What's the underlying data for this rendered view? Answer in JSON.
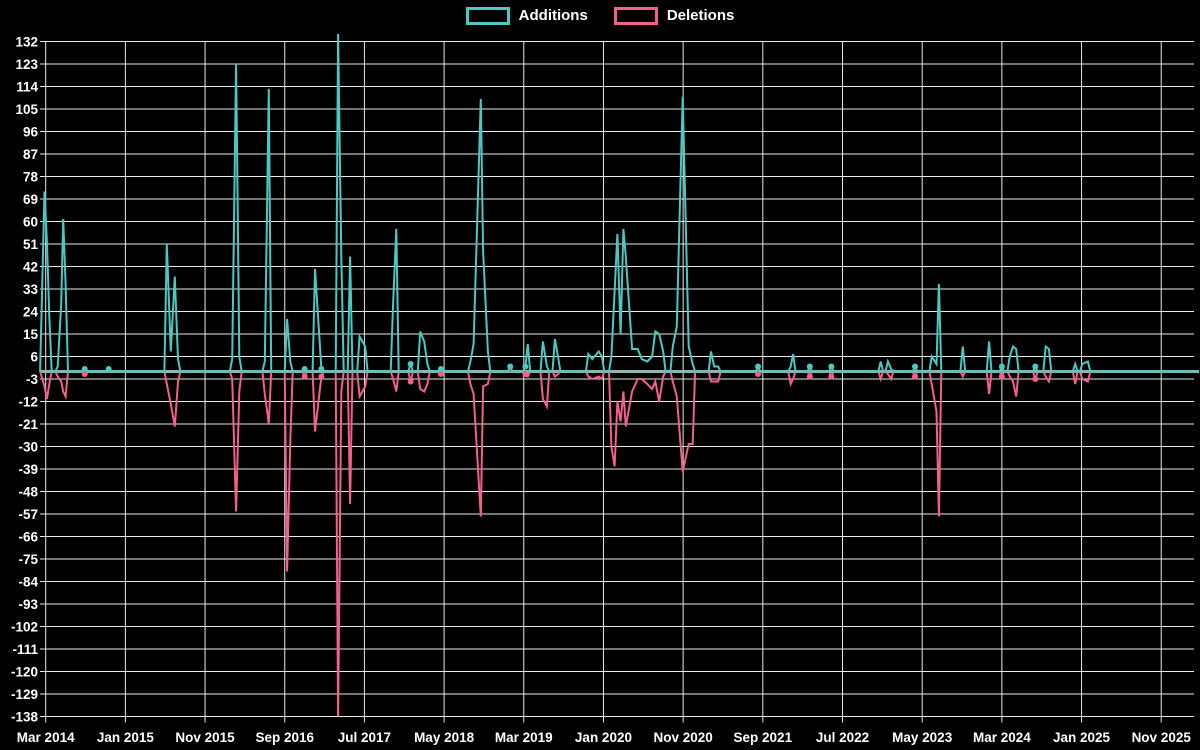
{
  "legend": {
    "additions": "Additions",
    "deletions": "Deletions"
  },
  "colors": {
    "background": "#000000",
    "additions": "#4CC8C2",
    "deletions": "#F2608C",
    "baseline": "#8FB5B3",
    "grid": "#E8E8E8",
    "text": "#FFFFFF"
  },
  "chart_data": {
    "type": "line",
    "title": "",
    "xlabel": "",
    "ylabel": "",
    "legend_position": "top",
    "grid": true,
    "series_names": [
      "Additions",
      "Deletions"
    ],
    "x_axis": {
      "tick_labels": [
        "Mar 2014",
        "Jan 2015",
        "Nov 2015",
        "Sep 2016",
        "Jul 2017",
        "May 2018",
        "Mar 2019",
        "Jan 2020",
        "Nov 2020",
        "Sep 2021",
        "Jul 2022",
        "May 2023",
        "Mar 2024",
        "Jan 2025",
        "Nov 2025"
      ],
      "months_per_tick": 10
    },
    "y_axis": {
      "min": -138,
      "max": 132,
      "step": 9
    },
    "points_format": [
      "months_since_Mar2014",
      "additions",
      "deletions",
      "marker_dot"
    ],
    "points": [
      [
        -0.7,
        0,
        0
      ],
      [
        -0.15,
        72,
        -6
      ],
      [
        0.15,
        52,
        -11
      ],
      [
        0.45,
        22,
        -5
      ],
      [
        1.5,
        2,
        -2
      ],
      [
        1.95,
        27,
        -4
      ],
      [
        2.2,
        61,
        -8
      ],
      [
        2.5,
        35,
        -10
      ],
      [
        4.9,
        1,
        -1,
        1
      ],
      [
        7.9,
        1,
        0,
        1
      ],
      [
        15.2,
        51,
        -5
      ],
      [
        15.7,
        8,
        -13
      ],
      [
        16.2,
        38,
        -22
      ],
      [
        16.6,
        5,
        -4
      ],
      [
        23.4,
        5,
        -3
      ],
      [
        23.9,
        123,
        -56
      ],
      [
        24.3,
        6,
        -8
      ],
      [
        27.5,
        4,
        -9
      ],
      [
        28.0,
        113,
        -21
      ],
      [
        30.3,
        21,
        -80
      ],
      [
        30.7,
        4,
        -28
      ],
      [
        32.5,
        1,
        -2,
        1
      ],
      [
        33.8,
        41,
        -24
      ],
      [
        34.6,
        1,
        -2,
        1
      ],
      [
        36.7,
        135,
        -138
      ],
      [
        37.1,
        46,
        -8
      ],
      [
        38.2,
        46,
        -53
      ],
      [
        39.4,
        14,
        -10
      ],
      [
        40.1,
        10,
        -6
      ],
      [
        43.6,
        27,
        -3
      ],
      [
        44.0,
        57,
        -8
      ],
      [
        45.8,
        3,
        -4,
        1
      ],
      [
        47.0,
        16,
        -7
      ],
      [
        47.5,
        12,
        -8
      ],
      [
        47.9,
        3,
        -5
      ],
      [
        49.6,
        1,
        -1,
        1
      ],
      [
        53.3,
        4,
        -5
      ],
      [
        53.7,
        11,
        -9
      ],
      [
        54.6,
        109,
        -58
      ],
      [
        54.9,
        48,
        -6
      ],
      [
        55.5,
        8,
        -5
      ],
      [
        58.3,
        2,
        0,
        1
      ],
      [
        60.2,
        2,
        -1,
        1
      ],
      [
        60.5,
        11,
        -2
      ],
      [
        62.4,
        12,
        -11
      ],
      [
        62.9,
        2,
        -14
      ],
      [
        63.9,
        13,
        -2
      ],
      [
        64.3,
        6,
        -1
      ],
      [
        68.1,
        7,
        -2
      ],
      [
        68.6,
        5,
        -3
      ],
      [
        69.4,
        8,
        -2
      ],
      [
        69.8,
        6,
        -3
      ],
      [
        71.0,
        6,
        -30
      ],
      [
        71.4,
        32,
        -38
      ],
      [
        71.75,
        55,
        -12
      ],
      [
        72.15,
        15,
        -20
      ],
      [
        72.5,
        57,
        -8
      ],
      [
        72.8,
        46,
        -22
      ],
      [
        73.6,
        9,
        -8
      ],
      [
        74.3,
        9,
        -3
      ],
      [
        74.8,
        5,
        -3
      ],
      [
        75.5,
        4,
        -5
      ],
      [
        76.1,
        6,
        -7
      ],
      [
        76.5,
        16,
        -4
      ],
      [
        77.0,
        15,
        -12
      ],
      [
        77.5,
        8,
        -2
      ],
      [
        78.7,
        10,
        -4
      ],
      [
        79.2,
        18,
        -10
      ],
      [
        79.95,
        110,
        -40
      ],
      [
        80.7,
        10,
        -29
      ],
      [
        81.2,
        3,
        -29
      ],
      [
        83.5,
        8,
        -4
      ],
      [
        83.9,
        2,
        -4
      ],
      [
        84.4,
        2,
        -4
      ],
      [
        89.4,
        2,
        -1,
        1
      ],
      [
        93.5,
        2,
        -5
      ],
      [
        93.8,
        7,
        -3
      ],
      [
        95.9,
        2,
        -2,
        1
      ],
      [
        98.6,
        2,
        -2,
        1
      ],
      [
        104.8,
        4,
        -3
      ],
      [
        105.7,
        4,
        -1
      ],
      [
        106.1,
        1,
        -3
      ],
      [
        109.1,
        2,
        -2,
        1
      ],
      [
        111.2,
        6,
        -5
      ],
      [
        111.8,
        3,
        -16
      ],
      [
        112.1,
        35,
        -58
      ],
      [
        115.1,
        10,
        -2
      ],
      [
        118.4,
        12,
        -9
      ],
      [
        120.0,
        2,
        -2,
        1
      ],
      [
        121.0,
        6,
        -2
      ],
      [
        121.4,
        10,
        -4
      ],
      [
        121.8,
        9,
        -10
      ],
      [
        124.2,
        2,
        -3,
        1
      ],
      [
        125.5,
        10,
        -2
      ],
      [
        125.9,
        9,
        -4
      ],
      [
        129.2,
        3,
        -5
      ],
      [
        130.1,
        3,
        -3
      ],
      [
        130.8,
        4,
        -4
      ],
      [
        144.6,
        0,
        0
      ]
    ]
  }
}
